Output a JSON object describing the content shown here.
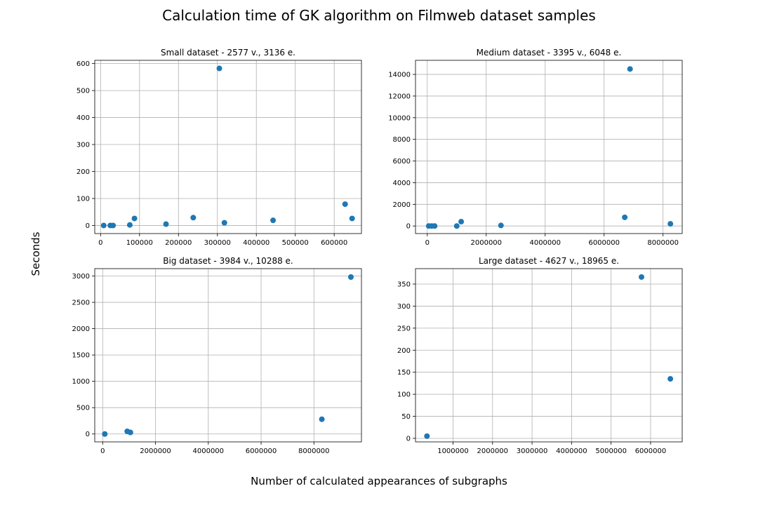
{
  "figure": {
    "title": "Calculation time of GK algorithm on Filmweb dataset samples",
    "xlabel": "Number of calculated appearances of subgraphs",
    "ylabel": "Seconds"
  },
  "colors": {
    "marker": "#1f77b4",
    "grid": "#b0b0b0",
    "axis": "#000000"
  },
  "chart_data": [
    {
      "type": "scatter",
      "title": "Small dataset - 2577 v., 3136 e.",
      "grid": true,
      "xlim": [
        -15000,
        670000
      ],
      "ylim": [
        -30,
        612
      ],
      "xticks": [
        0,
        100000,
        200000,
        300000,
        400000,
        500000,
        600000
      ],
      "yticks": [
        0,
        100,
        200,
        300,
        400,
        500,
        600
      ],
      "x": [
        8000,
        25000,
        32000,
        75000,
        87000,
        168000,
        238000,
        305000,
        318000,
        443000,
        628000,
        646000
      ],
      "y": [
        0,
        0,
        0,
        2,
        26,
        5,
        29,
        582,
        10,
        19,
        79,
        26
      ]
    },
    {
      "type": "scatter",
      "title": "Medium dataset - 3395 v., 6048 e.",
      "grid": true,
      "xlim": [
        -400000,
        8650000
      ],
      "ylim": [
        -700,
        15300
      ],
      "xticks": [
        0,
        2000000,
        4000000,
        6000000,
        8000000
      ],
      "yticks": [
        0,
        2000,
        4000,
        6000,
        8000,
        10000,
        12000,
        14000
      ],
      "x": [
        50000,
        150000,
        250000,
        1000000,
        1150000,
        2500000,
        6700000,
        6880000,
        8250000
      ],
      "y": [
        0,
        0,
        0,
        0,
        400,
        50,
        800,
        14500,
        200
      ]
    },
    {
      "type": "scatter",
      "title": "Big dataset - 3984 v., 10288 e.",
      "grid": true,
      "xlim": [
        -300000,
        9800000
      ],
      "ylim": [
        -150,
        3140
      ],
      "xticks": [
        0,
        2000000,
        4000000,
        6000000,
        8000000
      ],
      "yticks": [
        0,
        500,
        1000,
        1500,
        2000,
        2500,
        3000
      ],
      "x": [
        80000,
        930000,
        1050000,
        8300000,
        9400000
      ],
      "y": [
        0,
        50,
        30,
        280,
        2980
      ]
    },
    {
      "type": "scatter",
      "title": "Large dataset - 4627 v., 18965 e.",
      "grid": true,
      "xlim": [
        50000,
        6800000
      ],
      "ylim": [
        -8,
        385
      ],
      "xticks": [
        1000000,
        2000000,
        3000000,
        4000000,
        5000000,
        6000000
      ],
      "yticks": [
        0,
        50,
        100,
        150,
        200,
        250,
        300,
        350
      ],
      "x": [
        340000,
        5770000,
        6500000
      ],
      "y": [
        5,
        366,
        135
      ]
    }
  ]
}
